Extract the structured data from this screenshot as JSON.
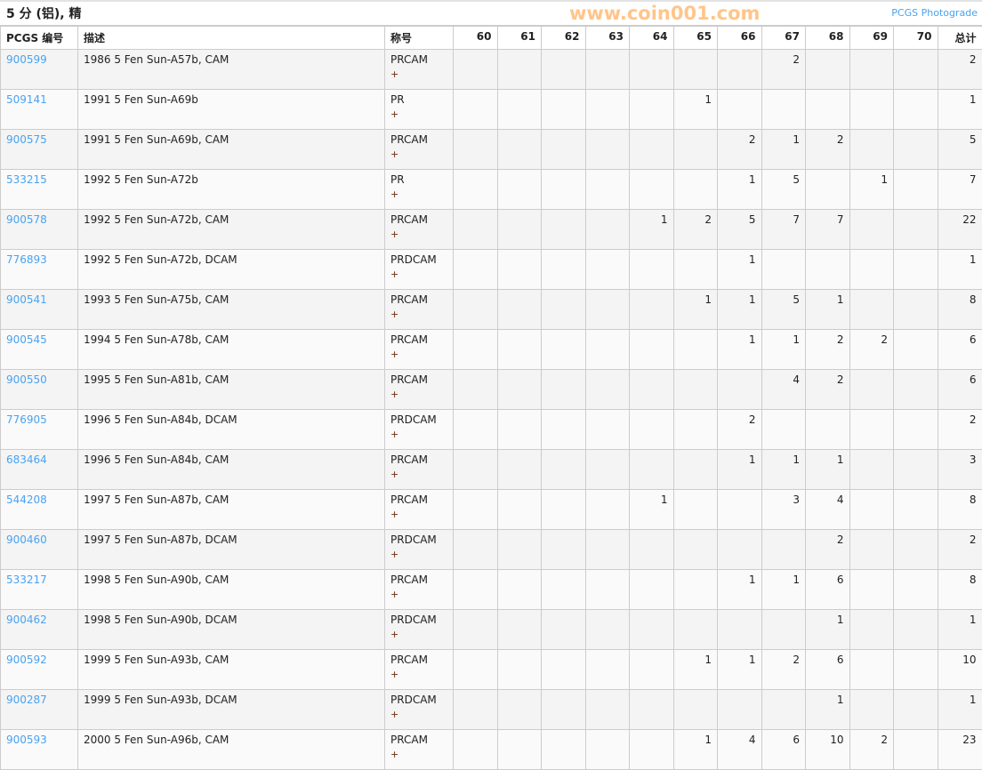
{
  "header": {
    "title": "5 分 (铝), 精",
    "photograde_link": "PCGS Photograde"
  },
  "columns": [
    "PCGS 编号",
    "描述",
    "称号",
    "60",
    "61",
    "62",
    "63",
    "64",
    "65",
    "66",
    "67",
    "68",
    "69",
    "70",
    "总计"
  ],
  "rows": [
    {
      "code": "900599",
      "desc": "1986 5 Fen Sun-A57b, CAM",
      "designation": "PRCAM",
      "plus": "+",
      "grades": [
        "",
        "",
        "",
        "",
        "",
        "",
        "",
        "2",
        "",
        "",
        ""
      ],
      "total": "2"
    },
    {
      "code": "509141",
      "desc": "1991 5 Fen Sun-A69b",
      "designation": "PR",
      "plus": "+",
      "grades": [
        "",
        "",
        "",
        "",
        "",
        "1",
        "",
        "",
        "",
        "",
        ""
      ],
      "total": "1"
    },
    {
      "code": "900575",
      "desc": "1991 5 Fen Sun-A69b, CAM",
      "designation": "PRCAM",
      "plus": "+",
      "grades": [
        "",
        "",
        "",
        "",
        "",
        "",
        "2",
        "1",
        "2",
        "",
        ""
      ],
      "total": "5"
    },
    {
      "code": "533215",
      "desc": "1992 5 Fen Sun-A72b",
      "designation": "PR",
      "plus": "+",
      "grades": [
        "",
        "",
        "",
        "",
        "",
        "",
        "1",
        "5",
        "",
        "1",
        ""
      ],
      "total": "7"
    },
    {
      "code": "900578",
      "desc": "1992 5 Fen Sun-A72b, CAM",
      "designation": "PRCAM",
      "plus": "+",
      "grades": [
        "",
        "",
        "",
        "",
        "1",
        "2",
        "5",
        "7",
        "7",
        "",
        ""
      ],
      "total": "22"
    },
    {
      "code": "776893",
      "desc": "1992 5 Fen Sun-A72b, DCAM",
      "designation": "PRDCAM",
      "plus": "+",
      "grades": [
        "",
        "",
        "",
        "",
        "",
        "",
        "1",
        "",
        "",
        "",
        ""
      ],
      "total": "1"
    },
    {
      "code": "900541",
      "desc": "1993 5 Fen Sun-A75b, CAM",
      "designation": "PRCAM",
      "plus": "+",
      "grades": [
        "",
        "",
        "",
        "",
        "",
        "1",
        "1",
        "5",
        "1",
        "",
        ""
      ],
      "total": "8"
    },
    {
      "code": "900545",
      "desc": "1994 5 Fen Sun-A78b, CAM",
      "designation": "PRCAM",
      "plus": "+",
      "grades": [
        "",
        "",
        "",
        "",
        "",
        "",
        "1",
        "1",
        "2",
        "2",
        ""
      ],
      "total": "6"
    },
    {
      "code": "900550",
      "desc": "1995 5 Fen Sun-A81b, CAM",
      "designation": "PRCAM",
      "plus": "+",
      "grades": [
        "",
        "",
        "",
        "",
        "",
        "",
        "",
        "4",
        "2",
        "",
        ""
      ],
      "total": "6"
    },
    {
      "code": "776905",
      "desc": "1996 5 Fen Sun-A84b, DCAM",
      "designation": "PRDCAM",
      "plus": "+",
      "grades": [
        "",
        "",
        "",
        "",
        "",
        "",
        "2",
        "",
        "",
        "",
        ""
      ],
      "total": "2"
    },
    {
      "code": "683464",
      "desc": "1996 5 Fen Sun-A84b, CAM",
      "designation": "PRCAM",
      "plus": "+",
      "grades": [
        "",
        "",
        "",
        "",
        "",
        "",
        "1",
        "1",
        "1",
        "",
        ""
      ],
      "total": "3"
    },
    {
      "code": "544208",
      "desc": "1997 5 Fen Sun-A87b, CAM",
      "designation": "PRCAM",
      "plus": "+",
      "grades": [
        "",
        "",
        "",
        "",
        "1",
        "",
        "",
        "3",
        "4",
        "",
        ""
      ],
      "total": "8"
    },
    {
      "code": "900460",
      "desc": "1997 5 Fen Sun-A87b, DCAM",
      "designation": "PRDCAM",
      "plus": "+",
      "grades": [
        "",
        "",
        "",
        "",
        "",
        "",
        "",
        "",
        "2",
        "",
        ""
      ],
      "total": "2"
    },
    {
      "code": "533217",
      "desc": "1998 5 Fen Sun-A90b, CAM",
      "designation": "PRCAM",
      "plus": "+",
      "grades": [
        "",
        "",
        "",
        "",
        "",
        "",
        "1",
        "1",
        "6",
        "",
        ""
      ],
      "total": "8"
    },
    {
      "code": "900462",
      "desc": "1998 5 Fen Sun-A90b, DCAM",
      "designation": "PRDCAM",
      "plus": "+",
      "grades": [
        "",
        "",
        "",
        "",
        "",
        "",
        "",
        "",
        "1",
        "",
        ""
      ],
      "total": "1"
    },
    {
      "code": "900592",
      "desc": "1999 5 Fen Sun-A93b, CAM",
      "designation": "PRCAM",
      "plus": "+",
      "grades": [
        "",
        "",
        "",
        "",
        "",
        "1",
        "1",
        "2",
        "6",
        "",
        ""
      ],
      "total": "10"
    },
    {
      "code": "900287",
      "desc": "1999 5 Fen Sun-A93b, DCAM",
      "designation": "PRDCAM",
      "plus": "+",
      "grades": [
        "",
        "",
        "",
        "",
        "",
        "",
        "",
        "",
        "1",
        "",
        ""
      ],
      "total": "1"
    },
    {
      "code": "900593",
      "desc": "2000 5 Fen Sun-A96b, CAM",
      "designation": "PRCAM",
      "plus": "+",
      "grades": [
        "",
        "",
        "",
        "",
        "",
        "1",
        "4",
        "6",
        "10",
        "2",
        ""
      ],
      "total": "23"
    }
  ],
  "watermark": "www.coin001.com",
  "colors": {
    "link": "#4aa3f0",
    "border": "#cccccc",
    "row_odd": "#f4f4f4",
    "row_even": "#fafafa"
  }
}
